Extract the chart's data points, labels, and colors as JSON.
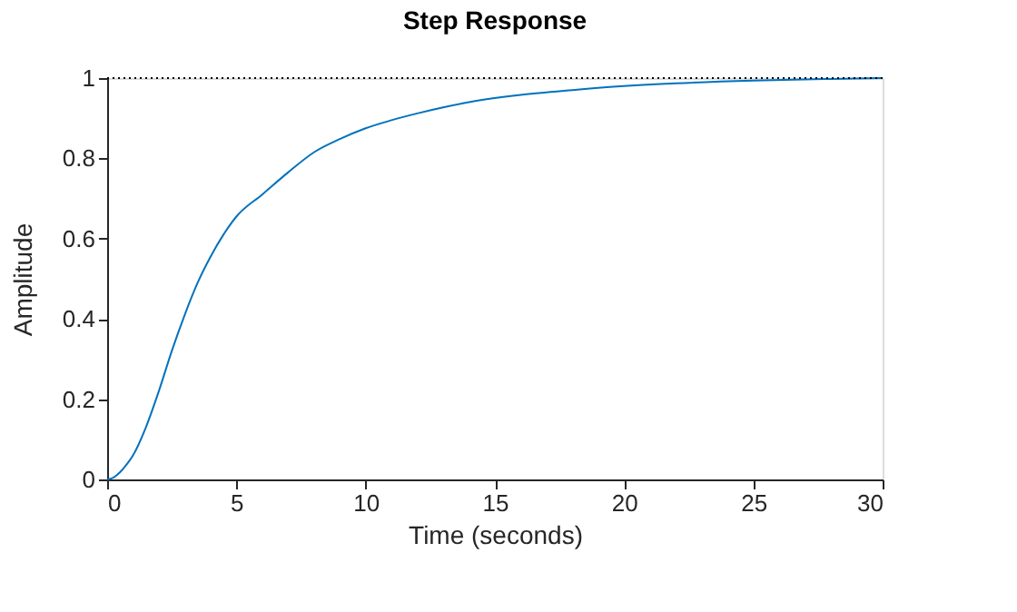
{
  "chart_data": {
    "type": "line",
    "title": "Step Response",
    "xlabel": "Time (seconds)",
    "ylabel": "Amplitude",
    "series": [
      {
        "color": "#0072bd",
        "x": [
          0,
          0.25,
          0.5,
          0.75,
          1,
          1.5,
          2,
          2.5,
          3,
          3.5,
          4,
          4.5,
          5,
          6,
          7,
          8,
          9,
          10,
          11,
          12,
          13,
          14,
          16,
          18,
          20,
          22,
          25,
          28,
          30
        ],
        "values": [
          0,
          0.005,
          0.018,
          0.037,
          0.06,
          0.13,
          0.22,
          0.32,
          0.41,
          0.49,
          0.555,
          0.61,
          0.655,
          0.71,
          0.765,
          0.815,
          0.848,
          0.875,
          0.895,
          0.912,
          0.927,
          0.94,
          0.958,
          0.97,
          0.98,
          0.987,
          0.994,
          0.998,
          1.0
        ]
      }
    ],
    "ref_lines": [
      {
        "axis": "y",
        "value": 1,
        "color": "#000000",
        "line_style": "dotted"
      }
    ],
    "xlim": [
      0,
      30
    ],
    "xticks": [
      0,
      5,
      10,
      15,
      20,
      25,
      30
    ],
    "ylim": [
      0,
      1
    ],
    "yticks": [
      0,
      0.2,
      0.4,
      0.6,
      0.8,
      1
    ],
    "grid": false
  }
}
